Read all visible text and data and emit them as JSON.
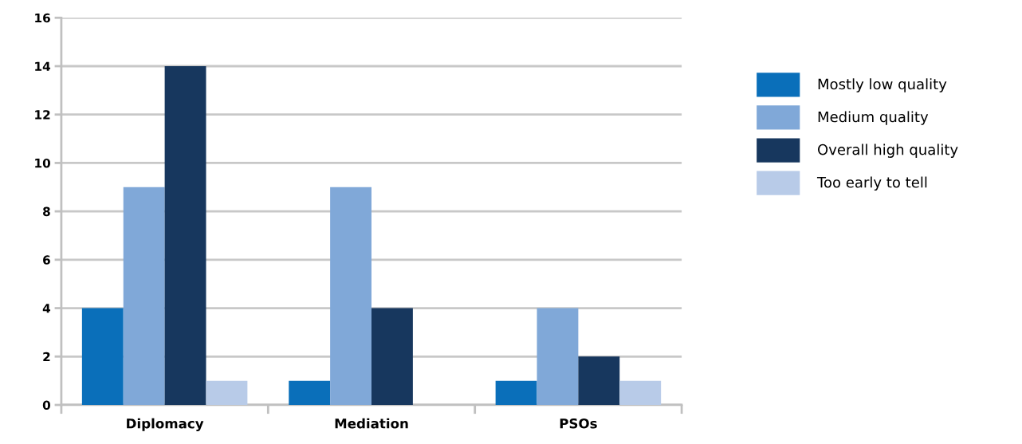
{
  "chart_data": {
    "type": "bar",
    "categories": [
      "Diplomacy",
      "Mediation",
      "PSOs"
    ],
    "series": [
      {
        "name": "Mostly low quality",
        "color": "#0a6fba",
        "values": [
          4,
          1,
          1
        ]
      },
      {
        "name": "Medium quality",
        "color": "#80a8d8",
        "values": [
          9,
          9,
          4
        ]
      },
      {
        "name": "Overall high quality",
        "color": "#17375e",
        "values": [
          14,
          4,
          2
        ]
      },
      {
        "name": "Too early to tell",
        "color": "#b8cbe8",
        "values": [
          1,
          0,
          1
        ]
      }
    ],
    "ylim": [
      0,
      16
    ],
    "yticks": [
      0,
      2,
      4,
      6,
      8,
      10,
      12,
      14,
      16
    ],
    "grid": "y",
    "legend": "right"
  }
}
